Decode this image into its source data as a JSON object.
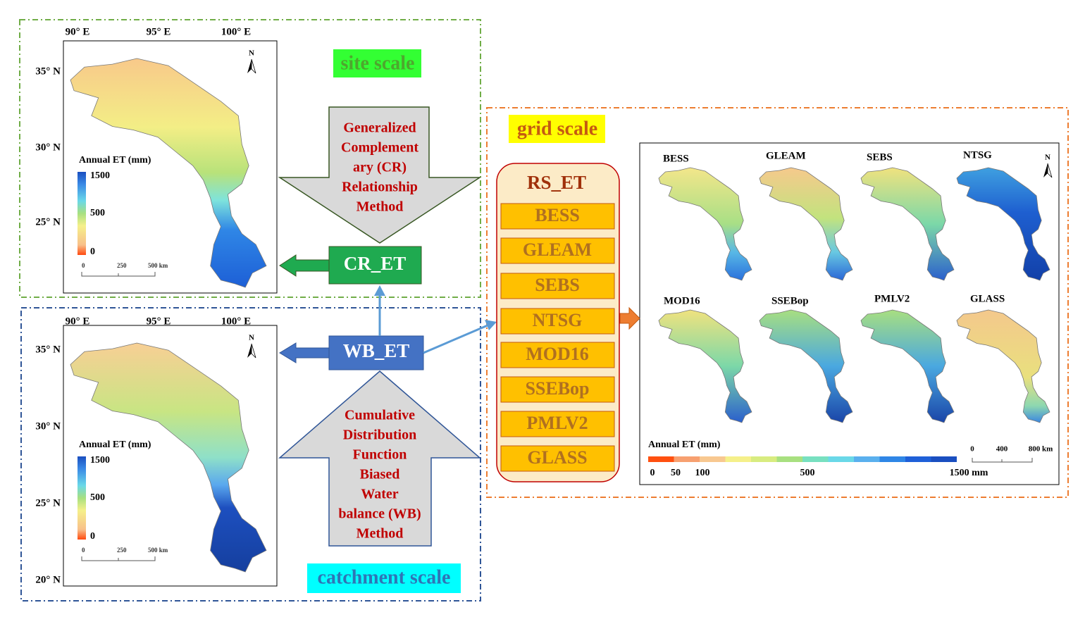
{
  "site_panel": {
    "label": "site scale",
    "map": {
      "lon_labels": [
        "90° E",
        "95° E",
        "100° E"
      ],
      "lat_labels": [
        "35° N",
        "30° N",
        "25° N"
      ],
      "north": "N",
      "legend_title": "Annual ET (mm)",
      "legend_labels": [
        "1500",
        "500",
        "0"
      ],
      "scale_labels": [
        "0",
        "250",
        "500 km"
      ]
    }
  },
  "cr_method": {
    "lines": [
      "Generalized",
      "Complement",
      "ary (CR)",
      "Relationship",
      "Method"
    ]
  },
  "cr_et": "CR_ET",
  "catchment_panel": {
    "label": "catchment scale",
    "map": {
      "lon_labels": [
        "90° E",
        "95° E",
        "100° E"
      ],
      "lat_labels": [
        "35° N",
        "30° N",
        "25° N",
        "20° N"
      ],
      "north": "N",
      "legend_title": "Annual ET (mm)",
      "legend_labels": [
        "1500",
        "500",
        "0"
      ],
      "scale_labels": [
        "0",
        "250",
        "500 km"
      ]
    }
  },
  "wb_method": {
    "lines": [
      "Cumulative",
      "Distribution",
      "Function",
      "Biased",
      "Water",
      "balance (WB)",
      "Method"
    ]
  },
  "wb_et": "WB_ET",
  "grid_panel": {
    "label": "grid scale",
    "rs_et": {
      "title": "RS_ET",
      "products": [
        "BESS",
        "GLEAM",
        "SEBS",
        "NTSG",
        "MOD16",
        "SSEBop",
        "PMLV2",
        "GLASS"
      ]
    },
    "maps": {
      "names": [
        "BESS",
        "GLEAM",
        "SEBS",
        "NTSG",
        "MOD16",
        "SSEBop",
        "PMLV2",
        "GLASS"
      ],
      "north": "N",
      "legend_title": "Annual ET (mm)",
      "colorbar_labels": [
        "0",
        "50",
        "100",
        "500",
        "1500 mm"
      ],
      "scale_labels": [
        "0",
        "400",
        "800 km"
      ]
    }
  }
}
